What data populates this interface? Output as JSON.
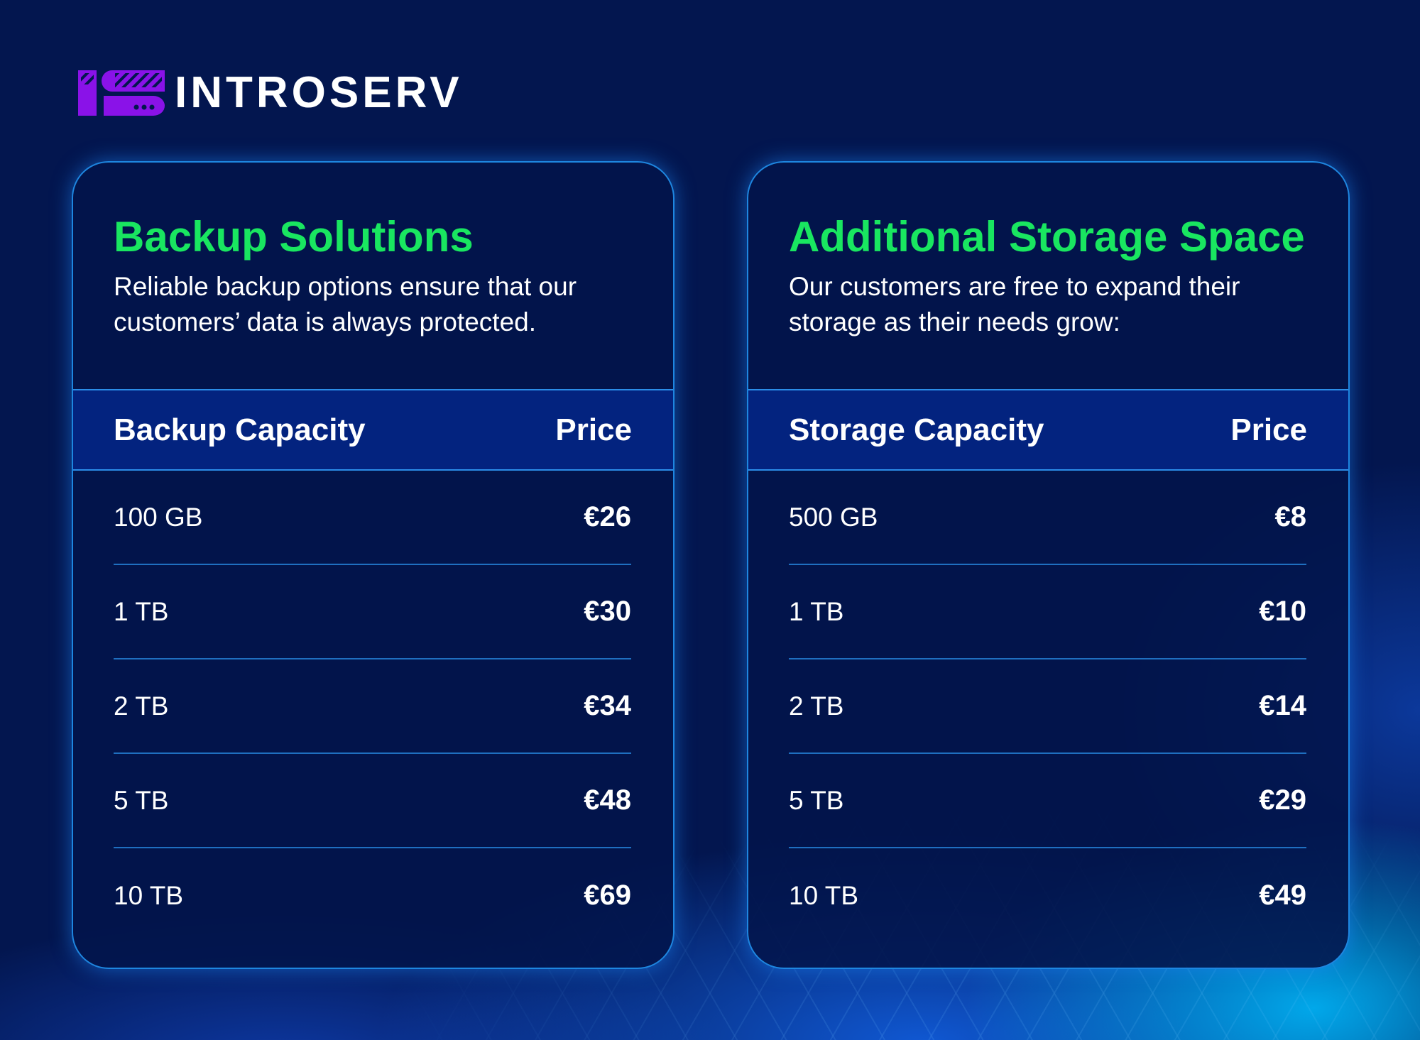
{
  "brand": {
    "name": "INTROSERV",
    "logo_color": "#8a12e8"
  },
  "colors": {
    "title": "#19e660",
    "background": "#03164f",
    "header_band": "#03237f"
  },
  "cards": [
    {
      "title": "Backup Solutions",
      "description": "Reliable backup options ensure that our customers’ data is always protected.",
      "col1": "Backup Capacity",
      "col2": "Price",
      "rows": [
        {
          "capacity": "100 GB",
          "price": "€26"
        },
        {
          "capacity": "1 TB",
          "price": "€30"
        },
        {
          "capacity": "2 TB",
          "price": "€34"
        },
        {
          "capacity": "5 TB",
          "price": "€48"
        },
        {
          "capacity": "10 TB",
          "price": "€69"
        }
      ]
    },
    {
      "title": "Additional Storage Space",
      "description": "Our customers are free to expand their storage as their needs grow:",
      "col1": "Storage Capacity",
      "col2": "Price",
      "rows": [
        {
          "capacity": "500 GB",
          "price": "€8"
        },
        {
          "capacity": "1 TB",
          "price": "€10"
        },
        {
          "capacity": "2 TB",
          "price": "€14"
        },
        {
          "capacity": "5 TB",
          "price": "€29"
        },
        {
          "capacity": "10 TB",
          "price": "€49"
        }
      ]
    }
  ]
}
